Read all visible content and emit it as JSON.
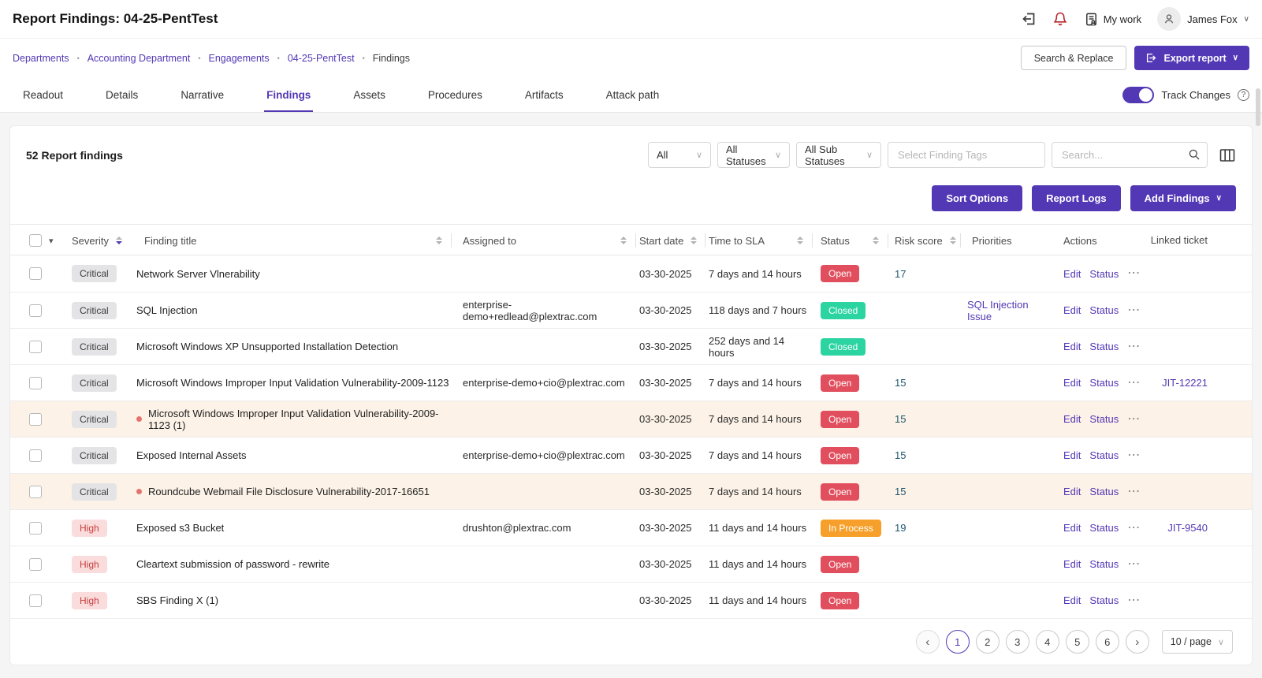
{
  "colors": {
    "accent": "#5338b5",
    "open": "#e14f5e",
    "closed": "#2cd4a2",
    "inprocess": "#f6a02b",
    "highlight": "#fcf2e7",
    "risk_score": "#1f566f",
    "bell": "#b5262b"
  },
  "icons": {
    "bullet": "•",
    "caret_down": "▾",
    "chevron_down": "∨",
    "more": "⋯",
    "prev": "‹",
    "next": "›",
    "help": "?"
  },
  "header": {
    "title": "Report Findings: 04-25-PentTest",
    "my_work_label": "My work",
    "user_name": "James Fox"
  },
  "breadcrumb": {
    "items": [
      {
        "label": "Departments",
        "current": false
      },
      {
        "label": "Accounting Department",
        "current": false
      },
      {
        "label": "Engagements",
        "current": false
      },
      {
        "label": "04-25-PentTest",
        "current": false
      },
      {
        "label": "Findings",
        "current": true
      }
    ],
    "search_replace_label": "Search & Replace",
    "export_report_label": "Export report"
  },
  "tabs": {
    "items": [
      "Readout",
      "Details",
      "Narrative",
      "Findings",
      "Assets",
      "Procedures",
      "Artifacts",
      "Attack path"
    ],
    "active": "Findings",
    "track_changes_label": "Track Changes",
    "track_changes_on": true
  },
  "findings_panel": {
    "count_label": "52 Report findings",
    "filters": {
      "type_filter": "All",
      "status_filter": "All Statuses",
      "sub_status_filter": "All Sub Statuses",
      "tags_placeholder": "Select Finding Tags",
      "search_placeholder": "Search..."
    },
    "buttons": {
      "sort_options": "Sort Options",
      "report_logs": "Report Logs",
      "add_findings": "Add Findings"
    },
    "table": {
      "columns": [
        "Severity",
        "Finding title",
        "Assigned to",
        "Start date",
        "Time to SLA",
        "Status",
        "Risk score",
        "Priorities",
        "Actions",
        "Linked ticket"
      ],
      "action_labels": {
        "edit": "Edit",
        "status": "Status"
      },
      "rows": [
        {
          "severity": "Critical",
          "sev": "critical",
          "marker": false,
          "title": "Network Server Vlnerability",
          "assigned": "",
          "start": "03-30-2025",
          "sla": "7 days and 14 hours",
          "status": "Open",
          "st": "open",
          "risk": "17",
          "priority": "",
          "ticket": "",
          "highlight": false
        },
        {
          "severity": "Critical",
          "sev": "critical",
          "marker": false,
          "title": "SQL Injection",
          "assigned": "enterprise-demo+redlead@plextrac.com",
          "start": "03-30-2025",
          "sla": "118 days and 7 hours",
          "status": "Closed",
          "st": "closed",
          "risk": "",
          "priority": "SQL Injection Issue",
          "ticket": "",
          "highlight": false
        },
        {
          "severity": "Critical",
          "sev": "critical",
          "marker": false,
          "title": "Microsoft Windows XP Unsupported Installation Detection",
          "assigned": "",
          "start": "03-30-2025",
          "sla": "252 days and 14 hours",
          "status": "Closed",
          "st": "closed",
          "risk": "",
          "priority": "",
          "ticket": "",
          "highlight": false
        },
        {
          "severity": "Critical",
          "sev": "critical",
          "marker": false,
          "title": "Microsoft Windows Improper Input Validation Vulnerability-2009-1123",
          "assigned": "enterprise-demo+cio@plextrac.com",
          "start": "03-30-2025",
          "sla": "7 days and 14 hours",
          "status": "Open",
          "st": "open",
          "risk": "15",
          "priority": "",
          "ticket": "JIT-12221",
          "highlight": false
        },
        {
          "severity": "Critical",
          "sev": "critical",
          "marker": true,
          "title": "Microsoft Windows Improper Input Validation Vulnerability-2009-1123 (1)",
          "assigned": "",
          "start": "03-30-2025",
          "sla": "7 days and 14 hours",
          "status": "Open",
          "st": "open",
          "risk": "15",
          "priority": "",
          "ticket": "",
          "highlight": true
        },
        {
          "severity": "Critical",
          "sev": "critical",
          "marker": false,
          "title": "Exposed Internal Assets",
          "assigned": "enterprise-demo+cio@plextrac.com",
          "start": "03-30-2025",
          "sla": "7 days and 14 hours",
          "status": "Open",
          "st": "open",
          "risk": "15",
          "priority": "",
          "ticket": "",
          "highlight": false
        },
        {
          "severity": "Critical",
          "sev": "critical",
          "marker": true,
          "title": "Roundcube Webmail File Disclosure Vulnerability-2017-16651",
          "assigned": "",
          "start": "03-30-2025",
          "sla": "7 days and 14 hours",
          "status": "Open",
          "st": "open",
          "risk": "15",
          "priority": "",
          "ticket": "",
          "highlight": true
        },
        {
          "severity": "High",
          "sev": "high",
          "marker": false,
          "title": "Exposed s3 Bucket",
          "assigned": "drushton@plextrac.com",
          "start": "03-30-2025",
          "sla": "11 days and 14 hours",
          "status": "In Process",
          "st": "inprocess",
          "risk": "19",
          "priority": "",
          "ticket": "JIT-9540",
          "highlight": false
        },
        {
          "severity": "High",
          "sev": "high",
          "marker": false,
          "title": "Cleartext submission of password - rewrite",
          "assigned": "",
          "start": "03-30-2025",
          "sla": "11 days and 14 hours",
          "status": "Open",
          "st": "open",
          "risk": "",
          "priority": "",
          "ticket": "",
          "highlight": false
        },
        {
          "severity": "High",
          "sev": "high",
          "marker": false,
          "title": "SBS Finding X (1)",
          "assigned": "",
          "start": "03-30-2025",
          "sla": "11 days and 14 hours",
          "status": "Open",
          "st": "open",
          "risk": "",
          "priority": "",
          "ticket": "",
          "highlight": false
        }
      ]
    },
    "pagination": {
      "pages": [
        "1",
        "2",
        "3",
        "4",
        "5",
        "6"
      ],
      "active_page": "1",
      "page_size": "10 / page"
    }
  }
}
